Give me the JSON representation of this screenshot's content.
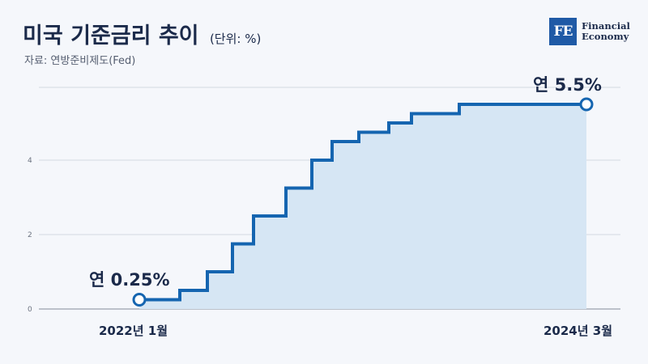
{
  "header": {
    "title": "미국 기준금리 추이",
    "unit": "(단위: %)",
    "source": "자료: 연방준비제도(Fed)"
  },
  "logo": {
    "mark": "FE",
    "line1": "Financial",
    "line2": "Economy",
    "color": "#1f5aa6"
  },
  "colors": {
    "line": "#1565b0",
    "fill": "#d6e6f4",
    "grid": "#c9ced8",
    "text": "#1b2a4a"
  },
  "chart_data": {
    "type": "line",
    "step": true,
    "grid": true,
    "ylim": [
      0,
      5.5
    ],
    "yticks": [
      0,
      2,
      4
    ],
    "xlabels": [
      "2022년 1월",
      "2024년 3월"
    ],
    "series": [
      {
        "values": [
          0.25,
          0.5,
          1.0,
          1.75,
          2.5,
          3.25,
          4.0,
          4.5,
          4.75,
          5.0,
          5.25,
          5.5,
          5.5
        ]
      }
    ],
    "annotations": [
      {
        "label": "연 0.25%"
      },
      {
        "label": "연 5.5%"
      }
    ]
  }
}
